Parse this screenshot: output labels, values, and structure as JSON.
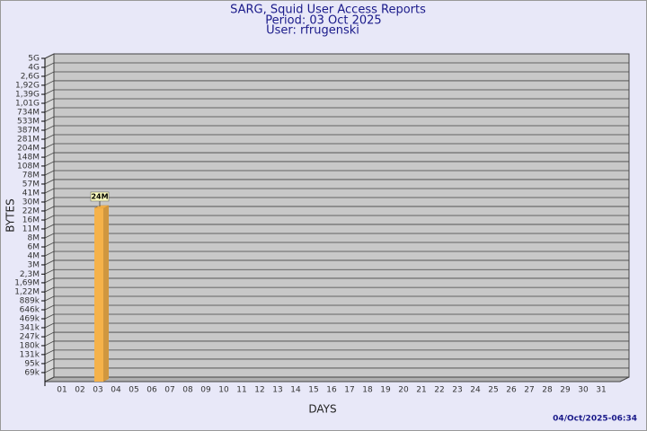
{
  "chart_data": {
    "type": "bar",
    "title": "SARG, Squid User Access Reports",
    "subtitle": "Period: 03 Oct 2025",
    "user": "User: rfrugenski",
    "x_label": "DAYS",
    "y_label": "BYTES",
    "footer": "04/Oct/2025-06:34",
    "categories": [
      "01",
      "02",
      "03",
      "04",
      "05",
      "06",
      "07",
      "08",
      "09",
      "10",
      "11",
      "12",
      "13",
      "14",
      "15",
      "16",
      "17",
      "18",
      "19",
      "20",
      "21",
      "22",
      "23",
      "24",
      "25",
      "26",
      "27",
      "28",
      "29",
      "30",
      "31"
    ],
    "values": [
      null,
      null,
      24000000,
      null,
      null,
      null,
      null,
      null,
      null,
      null,
      null,
      null,
      null,
      null,
      null,
      null,
      null,
      null,
      null,
      null,
      null,
      null,
      null,
      null,
      null,
      null,
      null,
      null,
      null,
      null,
      null
    ],
    "value_labels": [
      null,
      null,
      "24M",
      null,
      null,
      null,
      null,
      null,
      null,
      null,
      null,
      null,
      null,
      null,
      null,
      null,
      null,
      null,
      null,
      null,
      null,
      null,
      null,
      null,
      null,
      null,
      null,
      null,
      null,
      null,
      null
    ],
    "color": "#f5b24a",
    "log": true,
    "grid": true,
    "ylim": [
      50000,
      5000000000
    ],
    "yticks": [
      {
        "value": 69000,
        "label": "69k"
      },
      {
        "value": 95000,
        "label": "95k"
      },
      {
        "value": 131000,
        "label": "131k"
      },
      {
        "value": 180000,
        "label": "180k"
      },
      {
        "value": 247000,
        "label": "247k"
      },
      {
        "value": 341000,
        "label": "341k"
      },
      {
        "value": 469000,
        "label": "469k"
      },
      {
        "value": 646000,
        "label": "646k"
      },
      {
        "value": 889000,
        "label": "889k"
      },
      {
        "value": 1220000,
        "label": "1,22M"
      },
      {
        "value": 1690000,
        "label": "1,69M"
      },
      {
        "value": 2300000,
        "label": "2,3M"
      },
      {
        "value": 3200000,
        "label": "3M"
      },
      {
        "value": 4400000,
        "label": "4M"
      },
      {
        "value": 6060000,
        "label": "6M"
      },
      {
        "value": 8350000,
        "label": "8M"
      },
      {
        "value": 11500000,
        "label": "11M"
      },
      {
        "value": 15800000,
        "label": "16M"
      },
      {
        "value": 21800000,
        "label": "22M"
      },
      {
        "value": 30000000,
        "label": "30M"
      },
      {
        "value": 41300000,
        "label": "41M"
      },
      {
        "value": 56900000,
        "label": "57M"
      },
      {
        "value": 78300000,
        "label": "78M"
      },
      {
        "value": 108000000,
        "label": "108M"
      },
      {
        "value": 148000000,
        "label": "148M"
      },
      {
        "value": 204000000,
        "label": "204M"
      },
      {
        "value": 281000000,
        "label": "281M"
      },
      {
        "value": 387000000,
        "label": "387M"
      },
      {
        "value": 533000000,
        "label": "533M"
      },
      {
        "value": 734000000,
        "label": "734M"
      },
      {
        "value": 1010000000,
        "label": "1,01G"
      },
      {
        "value": 1390000000,
        "label": "1,39G"
      },
      {
        "value": 1920000000,
        "label": "1,92G"
      },
      {
        "value": 2640000000,
        "label": "2,6G"
      },
      {
        "value": 3630000000,
        "label": "4G"
      },
      {
        "value": 5000000000,
        "label": "5G"
      }
    ]
  }
}
